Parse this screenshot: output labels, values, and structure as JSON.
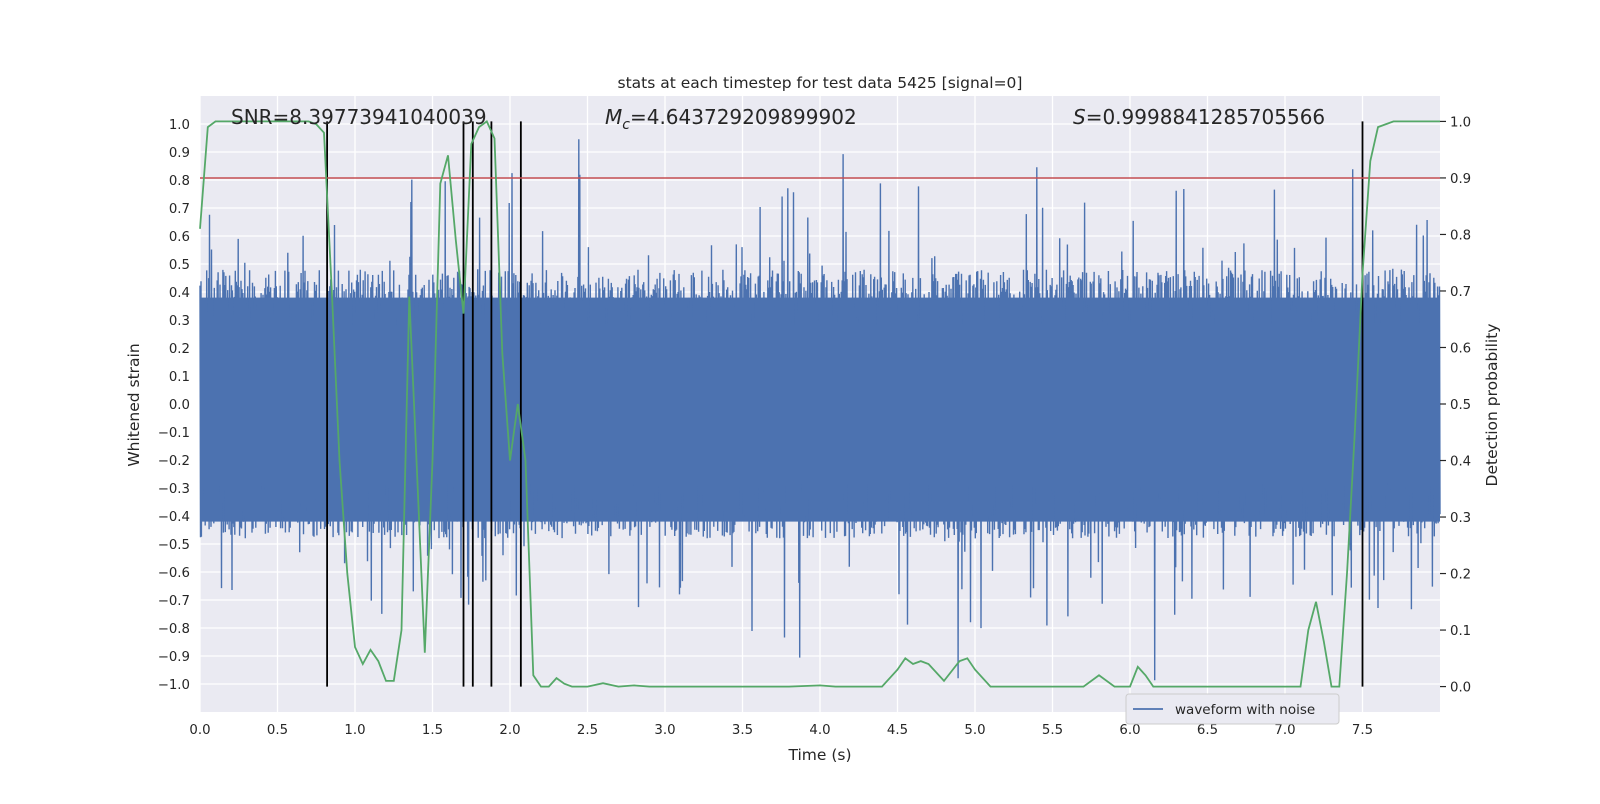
{
  "chart_data": {
    "type": "line",
    "title": "stats at each timestep for test data 5425 [signal=0]",
    "xlabel": "Time (s)",
    "ylabel": "Whitened strain",
    "y2label": "Detection probability",
    "xlim": [
      0,
      8
    ],
    "ylim": [
      -1.1,
      1.1
    ],
    "y2lim": [
      -0.045,
      1.045
    ],
    "x_ticks": [
      "0.0",
      "0.5",
      "1.0",
      "1.5",
      "2.0",
      "2.5",
      "3.0",
      "3.5",
      "4.0",
      "4.5",
      "5.0",
      "5.5",
      "6.0",
      "6.5",
      "7.0",
      "7.5"
    ],
    "x_tick_values": [
      0,
      0.5,
      1,
      1.5,
      2,
      2.5,
      3,
      3.5,
      4,
      4.5,
      5,
      5.5,
      6,
      6.5,
      7,
      7.5
    ],
    "y_ticks": [
      "1.0",
      "0.9",
      "0.8",
      "0.7",
      "0.6",
      "0.5",
      "0.4",
      "0.3",
      "0.2",
      "0.1",
      "0.0",
      "−0.1",
      "−0.2",
      "−0.3",
      "−0.4",
      "−0.5",
      "−0.6",
      "−0.7",
      "−0.8",
      "−0.9",
      "−1.0"
    ],
    "y_tick_values": [
      1,
      0.9,
      0.8,
      0.7,
      0.6,
      0.5,
      0.4,
      0.3,
      0.2,
      0.1,
      0,
      -0.1,
      -0.2,
      -0.3,
      -0.4,
      -0.5,
      -0.6,
      -0.7,
      -0.8,
      -0.9,
      -1
    ],
    "y2_ticks": [
      "1.0",
      "0.9",
      "0.8",
      "0.7",
      "0.6",
      "0.5",
      "0.4",
      "0.3",
      "0.2",
      "0.1",
      "0.0"
    ],
    "y2_tick_values": [
      1,
      0.9,
      0.8,
      0.7,
      0.6,
      0.5,
      0.4,
      0.3,
      0.2,
      0.1,
      0
    ],
    "annotations": {
      "snr": "SNR=8.39773941040039",
      "mc_symbol": "M",
      "mc_sub": "c",
      "mc_value": "=4.643729209899902",
      "s_symbol": "S",
      "s_value": "=0.9998841285705566"
    },
    "threshold": 0.9,
    "trigger_lines_x": [
      0.82,
      1.7,
      1.76,
      1.88,
      2.07,
      7.5
    ],
    "probability_series": {
      "name": "",
      "x": [
        0.0,
        0.05,
        0.1,
        0.15,
        0.2,
        0.3,
        0.4,
        0.5,
        0.6,
        0.7,
        0.75,
        0.8,
        0.85,
        0.9,
        0.95,
        1.0,
        1.05,
        1.1,
        1.15,
        1.2,
        1.25,
        1.3,
        1.35,
        1.4,
        1.45,
        1.5,
        1.55,
        1.6,
        1.65,
        1.7,
        1.75,
        1.8,
        1.85,
        1.9,
        1.95,
        2.0,
        2.05,
        2.1,
        2.15,
        2.2,
        2.25,
        2.3,
        2.35,
        2.4,
        2.5,
        2.6,
        2.7,
        2.8,
        2.9,
        3.0,
        3.1,
        3.2,
        3.4,
        3.6,
        3.8,
        4.0,
        4.1,
        4.2,
        4.3,
        4.4,
        4.5,
        4.55,
        4.6,
        4.65,
        4.7,
        4.8,
        4.9,
        4.95,
        5.0,
        5.1,
        5.2,
        5.3,
        5.4,
        5.5,
        5.6,
        5.7,
        5.8,
        5.9,
        6.0,
        6.05,
        6.1,
        6.15,
        6.2,
        6.3,
        6.4,
        6.6,
        6.8,
        7.0,
        7.05,
        7.1,
        7.15,
        7.2,
        7.25,
        7.3,
        7.35,
        7.4,
        7.45,
        7.5,
        7.55,
        7.6,
        7.7,
        7.8,
        7.9,
        8.0
      ],
      "values": [
        0.81,
        0.99,
        1.0,
        1.0,
        1.0,
        1.0,
        1.0,
        1.0,
        1.0,
        1.0,
        0.995,
        0.98,
        0.7,
        0.4,
        0.2,
        0.07,
        0.04,
        0.065,
        0.045,
        0.01,
        0.01,
        0.1,
        0.69,
        0.38,
        0.06,
        0.4,
        0.89,
        0.94,
        0.79,
        0.66,
        0.96,
        0.99,
        1.0,
        0.97,
        0.59,
        0.4,
        0.5,
        0.4,
        0.02,
        0.0,
        0.0,
        0.015,
        0.005,
        0.0,
        0.0,
        0.006,
        0.0,
        0.002,
        0.0,
        0.0,
        0.0,
        0.0,
        0.0,
        0.0,
        0.0,
        0.002,
        0.0,
        0.0,
        0.0,
        0.0,
        0.03,
        0.05,
        0.04,
        0.045,
        0.04,
        0.01,
        0.045,
        0.05,
        0.03,
        0.0,
        0.0,
        0.0,
        0.0,
        0.0,
        0.0,
        0.0,
        0.02,
        0.0,
        0.0,
        0.035,
        0.02,
        0.0,
        0.0,
        0.0,
        0.0,
        0.0,
        0.0,
        0.0,
        0.0,
        0.0,
        0.1,
        0.15,
        0.08,
        0.0,
        0.0,
        0.2,
        0.45,
        0.73,
        0.93,
        0.99,
        1.0,
        1.0,
        1.0,
        1.0
      ]
    },
    "strain_series": {
      "name": "waveform with noise",
      "description_of_shape": "dense noisy signal",
      "x_range": [
        0,
        8
      ],
      "amplitude_range": [
        -1.0,
        1.0
      ]
    },
    "legend": {
      "entries": [
        "waveform with noise"
      ],
      "placement": "bottom-right"
    },
    "grid": true,
    "colors": {
      "strain": "#4c72b0",
      "probability": "#55a868",
      "threshold": "#c44e52",
      "trigger": "#000000",
      "background": "#eaeaf2",
      "grid": "#ffffff"
    }
  }
}
